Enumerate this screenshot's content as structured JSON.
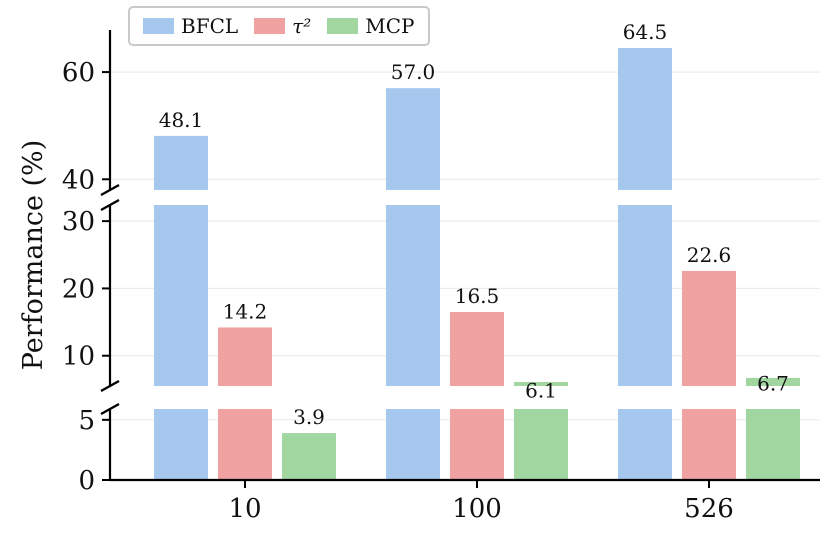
{
  "chart_data": {
    "type": "bar",
    "title": "",
    "xlabel": "",
    "ylabel": "Performance (%)",
    "categories": [
      "10",
      "100",
      "526"
    ],
    "series": [
      {
        "name": "BFCL",
        "color": "#a6c8ef",
        "values": [
          48.1,
          57.0,
          64.5
        ]
      },
      {
        "name": "τ²",
        "color": "#f0a2a2",
        "values": [
          14.2,
          16.5,
          22.6
        ]
      },
      {
        "name": "MCP",
        "color": "#a2d6a0",
        "values": [
          3.9,
          6.1,
          6.7
        ]
      }
    ],
    "y_ticks": [
      0,
      5,
      10,
      20,
      30,
      40,
      60
    ],
    "y_axis_breaks": [
      [
        6,
        8
      ],
      [
        33,
        38
      ]
    ],
    "ylim": [
      0,
      67
    ],
    "grid": true,
    "legend_position": "top-left",
    "value_labels_shown": true
  }
}
